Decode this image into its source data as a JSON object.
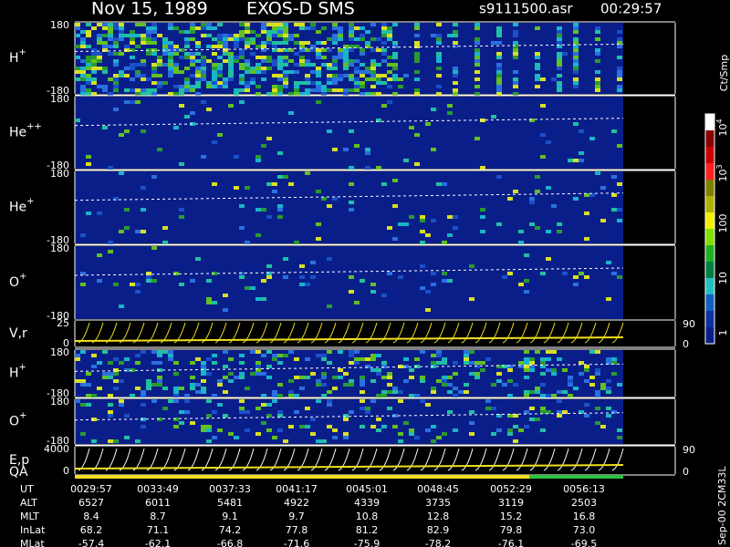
{
  "header": {
    "date": "Nov 15, 1989",
    "instrument": "EXOS-D SMS",
    "file": "s9111500.asr",
    "time": "00:29:57"
  },
  "panels": [
    {
      "label": "H",
      "sup": "+",
      "top": "180",
      "bottom": "-180"
    },
    {
      "label": "He",
      "sup": "++",
      "top": "180",
      "bottom": "-180"
    },
    {
      "label": "He",
      "sup": "+",
      "top": "180",
      "bottom": "-180"
    },
    {
      "label": "O",
      "sup": "+",
      "top": "180",
      "bottom": "-180"
    },
    {
      "label": "V,r",
      "sup": "",
      "top": "25",
      "bottom": "0",
      "right_top": "90",
      "right_bottom": "0"
    },
    {
      "label": "H",
      "sup": "+",
      "top": "180",
      "bottom": "-180"
    },
    {
      "label": "O",
      "sup": "+",
      "top": "180",
      "bottom": "-180"
    },
    {
      "label": "E,p",
      "sup": "",
      "top": "4000",
      "bottom": "0",
      "right_top": "90",
      "right_bottom": "0"
    }
  ],
  "qa_label": "QA",
  "colorbar": {
    "unit": "Ct/Smp",
    "ticks": [
      {
        "base": "10",
        "exp": "4"
      },
      {
        "base": "10",
        "exp": "3"
      },
      {
        "base": "100",
        "exp": ""
      },
      {
        "base": "10",
        "exp": ""
      },
      {
        "base": "1",
        "exp": ""
      }
    ]
  },
  "footer_code": "Sep-00  2CM33L",
  "table": {
    "rows": [
      [
        "UT",
        "0029:57",
        "0033:49",
        "0037:33",
        "0041:17",
        "0045:01",
        "0048:45",
        "0052:29",
        "0056:13"
      ],
      [
        "ALT",
        "6527",
        "6011",
        "5481",
        "4922",
        "4339",
        "3735",
        "3119",
        "2503"
      ],
      [
        "MLT",
        "8.4",
        "8.7",
        "9.1",
        "9.7",
        "10.8",
        "12.8",
        "15.2",
        "16.8"
      ],
      [
        "InLat",
        "68.2",
        "71.1",
        "74.2",
        "77.8",
        "81.2",
        "82.9",
        "79.8",
        "73.0"
      ],
      [
        "MLat",
        "-57.4",
        "-62.1",
        "-66.8",
        "-71.6",
        "-75.9",
        "-78.2",
        "-76.1",
        "-69.5"
      ]
    ]
  }
}
